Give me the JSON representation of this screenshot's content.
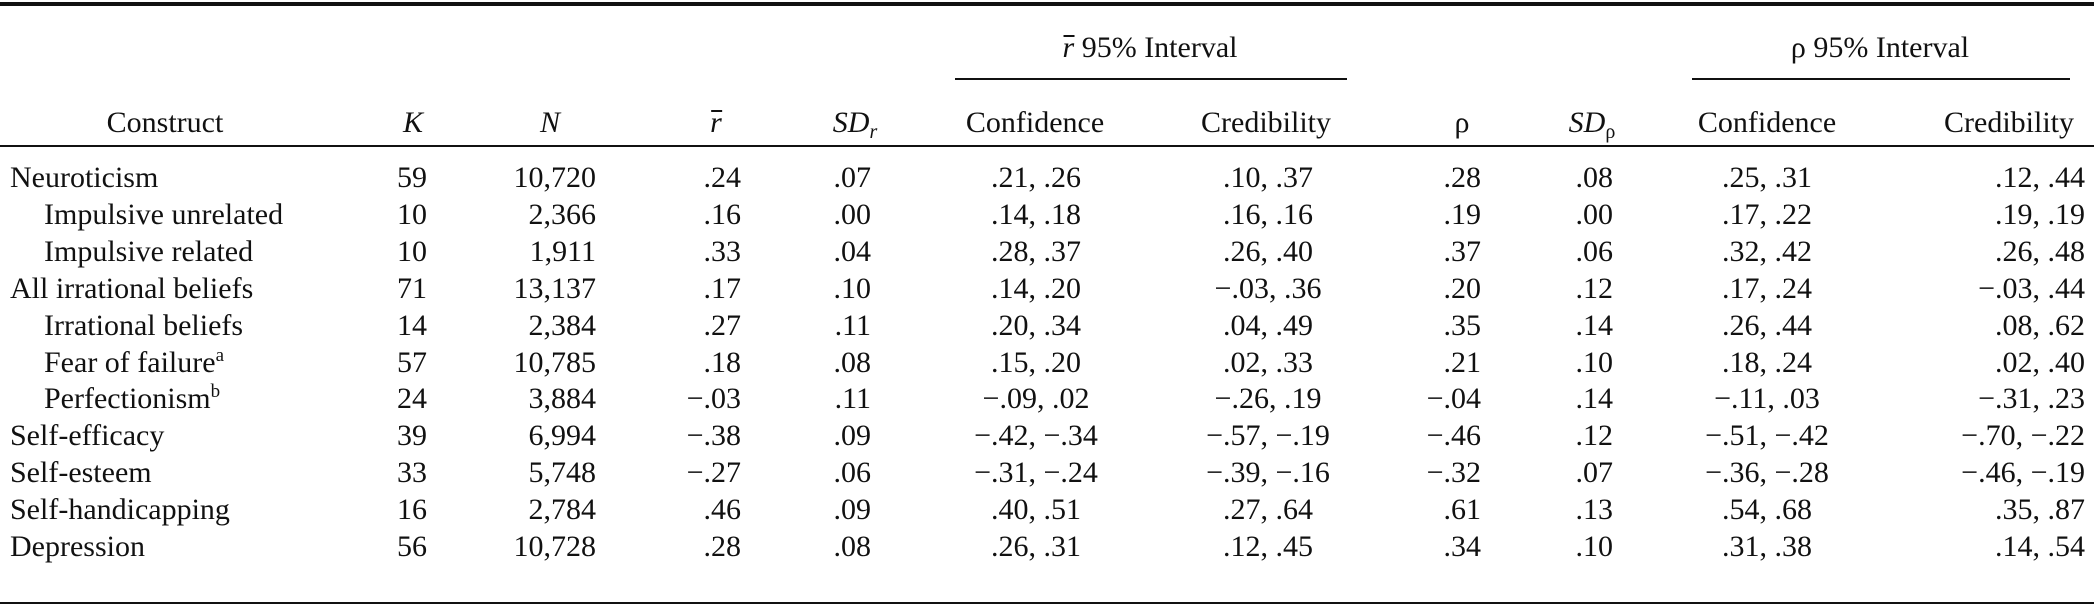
{
  "header": {
    "group1": {
      "symbol": "r",
      "label": "95% Interval"
    },
    "group2": {
      "symbol": "ρ",
      "label": "95% Interval"
    },
    "construct": "Construct",
    "k": "K",
    "n": "N",
    "rbar": "r",
    "sdr_main": "SD",
    "sdr_sub": "r",
    "conf1": "Confidence",
    "cred1": "Credibility",
    "rho": "ρ",
    "sdrho_main": "SD",
    "sdrho_sub": "ρ",
    "conf2": "Confidence",
    "cred2": "Credibility"
  },
  "rows": [
    {
      "construct": "Neuroticism",
      "sup": "",
      "k": "59",
      "n": "10,720",
      "rbar": ".24",
      "sdr": ".07",
      "conf1": ".21, .26",
      "cred1": ".10, .37",
      "rho": ".28",
      "sdrho": ".08",
      "conf2": ".25, .31",
      "cred2": ".12, .44"
    },
    {
      "construct": "Impulsive unrelated",
      "sup": "",
      "k": "10",
      "n": "2,366",
      "rbar": ".16",
      "sdr": ".00",
      "conf1": ".14, .18",
      "cred1": ".16, .16",
      "rho": ".19",
      "sdrho": ".00",
      "conf2": ".17, .22",
      "cred2": ".19, .19"
    },
    {
      "construct": "Impulsive related",
      "sup": "",
      "k": "10",
      "n": "1,911",
      "rbar": ".33",
      "sdr": ".04",
      "conf1": ".28, .37",
      "cred1": ".26, .40",
      "rho": ".37",
      "sdrho": ".06",
      "conf2": ".32, .42",
      "cred2": ".26, .48"
    },
    {
      "construct": "All irrational beliefs",
      "sup": "",
      "k": "71",
      "n": "13,137",
      "rbar": ".17",
      "sdr": ".10",
      "conf1": ".14, .20",
      "cred1": "−.03, .36",
      "rho": ".20",
      "sdrho": ".12",
      "conf2": ".17, .24",
      "cred2": "−.03, .44"
    },
    {
      "construct": "Irrational beliefs",
      "sup": "",
      "k": "14",
      "n": "2,384",
      "rbar": ".27",
      "sdr": ".11",
      "conf1": ".20, .34",
      "cred1": ".04, .49",
      "rho": ".35",
      "sdrho": ".14",
      "conf2": ".26, .44",
      "cred2": ".08, .62"
    },
    {
      "construct": "Fear of failure",
      "sup": "a",
      "k": "57",
      "n": "10,785",
      "rbar": ".18",
      "sdr": ".08",
      "conf1": ".15, .20",
      "cred1": ".02, .33",
      "rho": ".21",
      "sdrho": ".10",
      "conf2": ".18, .24",
      "cred2": ".02, .40"
    },
    {
      "construct": "Perfectionism",
      "sup": "b",
      "k": "24",
      "n": "3,884",
      "rbar": "−.03",
      "sdr": ".11",
      "conf1": "−.09, .02",
      "cred1": "−.26, .19",
      "rho": "−.04",
      "sdrho": ".14",
      "conf2": "−.11, .03",
      "cred2": "−.31, .23"
    },
    {
      "construct": "Self-efficacy",
      "sup": "",
      "k": "39",
      "n": "6,994",
      "rbar": "−.38",
      "sdr": ".09",
      "conf1": "−.42, −.34",
      "cred1": "−.57, −.19",
      "rho": "−.46",
      "sdrho": ".12",
      "conf2": "−.51, −.42",
      "cred2": "−.70, −.22"
    },
    {
      "construct": "Self-esteem",
      "sup": "",
      "k": "33",
      "n": "5,748",
      "rbar": "−.27",
      "sdr": ".06",
      "conf1": "−.31, −.24",
      "cred1": "−.39, −.16",
      "rho": "−.32",
      "sdrho": ".07",
      "conf2": "−.36, −.28",
      "cred2": "−.46, −.19"
    },
    {
      "construct": "Self-handicapping",
      "sup": "",
      "k": "16",
      "n": "2,784",
      "rbar": ".46",
      "sdr": ".09",
      "conf1": ".40, .51",
      "cred1": ".27, .64",
      "rho": ".61",
      "sdrho": ".13",
      "conf2": ".54, .68",
      "cred2": ".35, .87"
    },
    {
      "construct": "Depression",
      "sup": "",
      "k": "56",
      "n": "10,728",
      "rbar": ".28",
      "sdr": ".08",
      "conf1": ".26, .31",
      "cred1": ".12, .45",
      "rho": ".34",
      "sdrho": ".10",
      "conf2": ".31, .38",
      "cred2": ".14, .54"
    }
  ]
}
